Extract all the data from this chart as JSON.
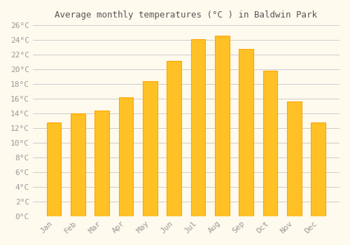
{
  "title": "Average monthly temperatures (°C ) in Baldwin Park",
  "months": [
    "Jan",
    "Feb",
    "Mar",
    "Apr",
    "May",
    "Jun",
    "Jul",
    "Aug",
    "Sep",
    "Oct",
    "Nov",
    "Dec"
  ],
  "values": [
    12.8,
    14.0,
    14.4,
    16.2,
    18.4,
    21.1,
    24.1,
    24.6,
    22.8,
    19.8,
    15.6,
    12.8
  ],
  "bar_color": "#FFC125",
  "bar_edge_color": "#FFA500",
  "background_color": "#FFFAEE",
  "grid_color": "#CCCCCC",
  "tick_label_color": "#999999",
  "title_color": "#555555",
  "ylim": [
    0,
    26
  ],
  "ytick_step": 2
}
